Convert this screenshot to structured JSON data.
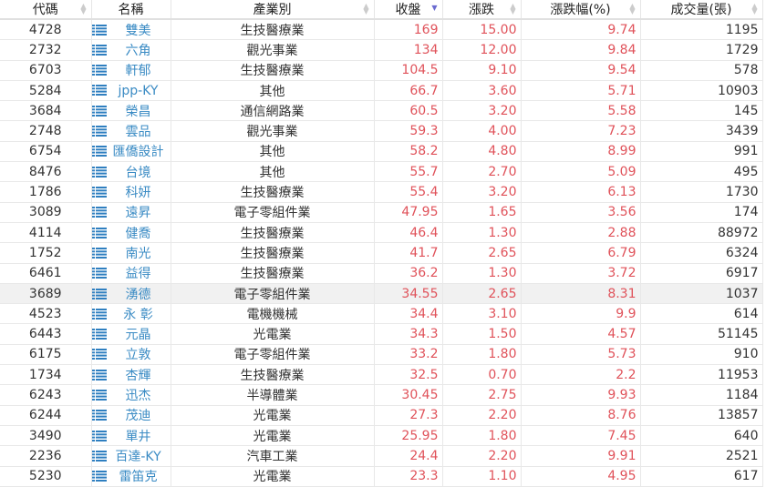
{
  "headers": [
    "代碼",
    "名稱",
    "產業別",
    "收盤",
    "漲跌",
    "漲跌幅(%)",
    "成交量(張)"
  ],
  "sorted_column": "收盤",
  "sort_direction": "descending",
  "colors": {
    "up": "#e0525a",
    "link": "#3a8bc4",
    "highlight": "#f1f1f1"
  },
  "rows": [
    [
      "4728",
      "雙美",
      "生技醫療業",
      "169",
      "15.00",
      "9.74",
      "1195"
    ],
    [
      "2732",
      "六角",
      "觀光事業",
      "134",
      "12.00",
      "9.84",
      "1729"
    ],
    [
      "6703",
      "軒郁",
      "生技醫療業",
      "104.5",
      "9.10",
      "9.54",
      "578"
    ],
    [
      "5284",
      "jpp-KY",
      "其他",
      "66.7",
      "3.60",
      "5.71",
      "10903"
    ],
    [
      "3684",
      "榮昌",
      "通信網路業",
      "60.5",
      "3.20",
      "5.58",
      "145"
    ],
    [
      "2748",
      "雲品",
      "觀光事業",
      "59.3",
      "4.00",
      "7.23",
      "3439"
    ],
    [
      "6754",
      "匯僑設計",
      "其他",
      "58.2",
      "4.80",
      "8.99",
      "991"
    ],
    [
      "8476",
      "台境",
      "其他",
      "55.7",
      "2.70",
      "5.09",
      "495"
    ],
    [
      "1786",
      "科妍",
      "生技醫療業",
      "55.4",
      "3.20",
      "6.13",
      "1730"
    ],
    [
      "3089",
      "遠昇",
      "電子零組件業",
      "47.95",
      "1.65",
      "3.56",
      "174"
    ],
    [
      "4114",
      "健喬",
      "生技醫療業",
      "46.4",
      "1.30",
      "2.88",
      "88972"
    ],
    [
      "1752",
      "南光",
      "生技醫療業",
      "41.7",
      "2.65",
      "6.79",
      "6324"
    ],
    [
      "6461",
      "益得",
      "生技醫療業",
      "36.2",
      "1.30",
      "3.72",
      "6917"
    ],
    [
      "3689",
      "湧德",
      "電子零組件業",
      "34.55",
      "2.65",
      "8.31",
      "1037"
    ],
    [
      "4523",
      "永 彰",
      "電機機械",
      "34.4",
      "3.10",
      "9.9",
      "614"
    ],
    [
      "6443",
      "元晶",
      "光電業",
      "34.3",
      "1.50",
      "4.57",
      "51145"
    ],
    [
      "6175",
      "立敦",
      "電子零組件業",
      "33.2",
      "1.80",
      "5.73",
      "910"
    ],
    [
      "1734",
      "杏輝",
      "生技醫療業",
      "32.5",
      "0.70",
      "2.2",
      "11953"
    ],
    [
      "6243",
      "迅杰",
      "半導體業",
      "30.45",
      "2.75",
      "9.93",
      "1184"
    ],
    [
      "6244",
      "茂迪",
      "光電業",
      "27.3",
      "2.20",
      "8.76",
      "13857"
    ],
    [
      "3490",
      "單井",
      "光電業",
      "25.95",
      "1.80",
      "7.45",
      "640"
    ],
    [
      "2236",
      "百達-KY",
      "汽車工業",
      "24.4",
      "2.20",
      "9.91",
      "2521"
    ],
    [
      "5230",
      "雷笛克",
      "光電業",
      "23.3",
      "1.10",
      "4.95",
      "617"
    ]
  ],
  "highlighted_row": "3689"
}
